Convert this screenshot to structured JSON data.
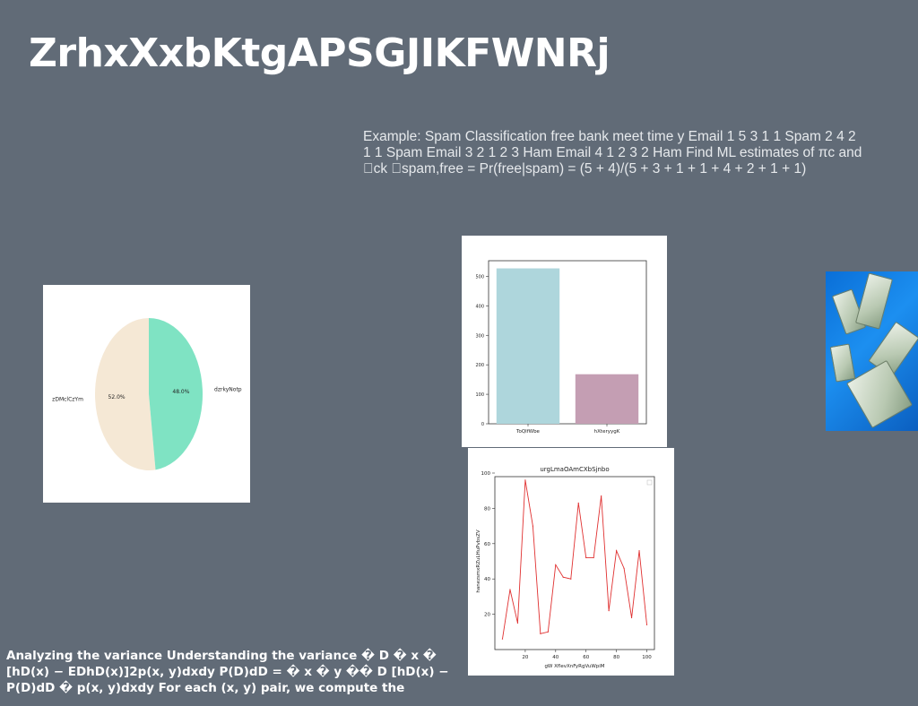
{
  "title": "ZrhxXxbKtgAPSGJIKFWNRj",
  "example_text": "Example: Spam Classification free bank meet time y Email 1 5 3 1 1 Spam 2 4 2 1 1 Spam Email 3 2 1 2 3 Ham Email 4 1 2 3 2 Ham Find ML estimates of πc and \u0000ck \u0000spam,free = Pr(free|spam) = (5 + 4)/(5 + 3 + 1 + 1 + 4 + 2 + 1 + 1)",
  "bottom_text": "Analyzing the variance Understanding the variance � D � x � [hD(x) − EDhD(x)]2p(x, y)dxdy P(D)dD = � x � y �� D [hD(x) − P(D)dD � p(x, y)dxdy For each (x, y) pair, we compute the",
  "photo_icon": "money-bills-photo",
  "chart_data": [
    {
      "type": "pie",
      "labels": [
        "zDMclCzYm",
        "dzrkyNotp"
      ],
      "values": [
        52.0,
        48.0
      ],
      "value_labels": [
        "52.0%",
        "48.0%"
      ],
      "colors": [
        "#f5e8d5",
        "#7fe3c3"
      ]
    },
    {
      "type": "bar",
      "categories": [
        "ToQlfWbe",
        "hXteryygK"
      ],
      "values": [
        527,
        168
      ],
      "colors": [
        "#aed6dc",
        "#c49eb3"
      ],
      "ylim": [
        0,
        553
      ],
      "yticks": [
        0,
        100,
        200,
        300,
        400,
        500
      ]
    },
    {
      "type": "line",
      "title": "urgLmaOAmCXbSjnbo",
      "xlabel": "gW XflevXnFyRgVuWpiM",
      "ylabel": "hanezsmxRZuLHuPvbsZV",
      "x": [
        5,
        10,
        15,
        20,
        25,
        30,
        35,
        40,
        45,
        50,
        55,
        60,
        65,
        70,
        75,
        80,
        85,
        90,
        95,
        100
      ],
      "y": [
        6,
        34,
        15,
        96,
        70,
        9,
        10,
        48,
        41,
        40,
        83,
        52,
        52,
        87,
        22,
        56,
        46,
        18,
        56,
        14
      ],
      "color": "#e03030",
      "xlim": [
        0,
        105
      ],
      "ylim": [
        0,
        100
      ],
      "xticks": [
        20,
        40,
        60,
        80,
        100
      ],
      "yticks": [
        20,
        40,
        60,
        80,
        100
      ]
    }
  ]
}
